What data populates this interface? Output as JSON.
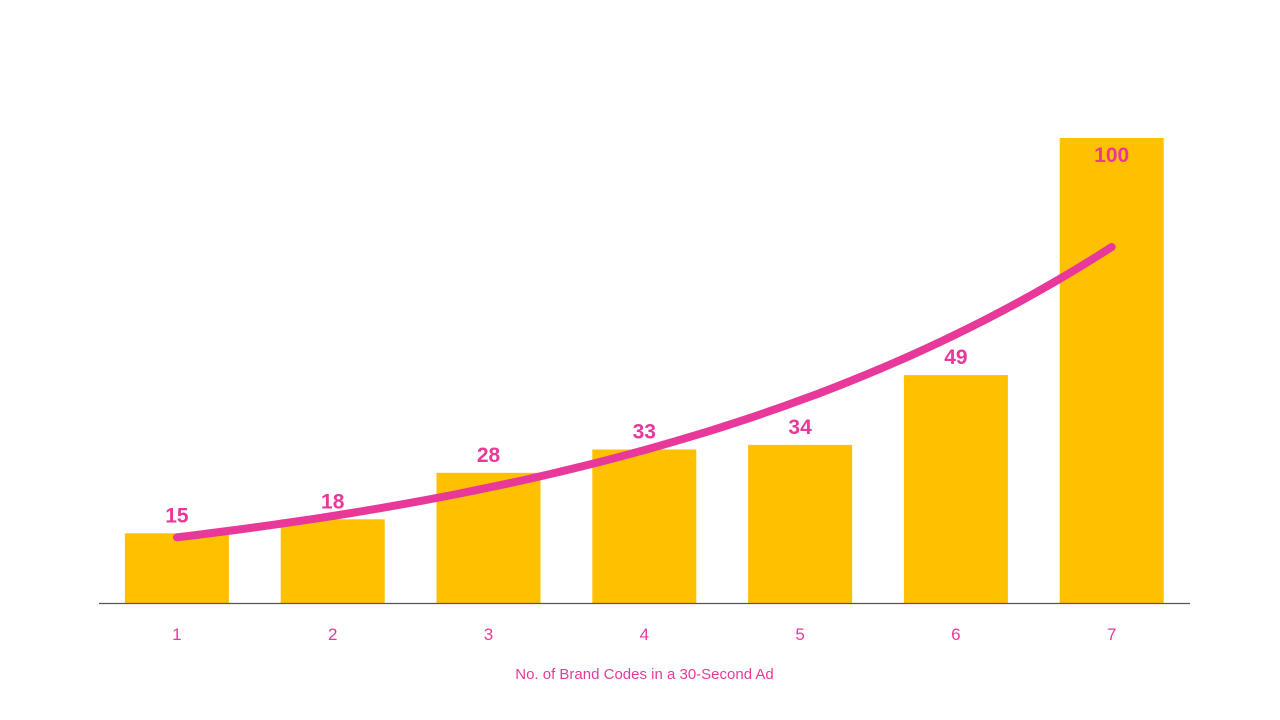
{
  "chart_data": {
    "type": "bar",
    "categories": [
      "1",
      "2",
      "3",
      "4",
      "5",
      "6",
      "7"
    ],
    "values": [
      15,
      18,
      28,
      33,
      34,
      49,
      100
    ],
    "data_labels": [
      "15",
      "18",
      "28",
      "33",
      "34",
      "49",
      "100"
    ],
    "xlabel": "No. of Brand Codes in a 30-Second Ad",
    "ylabel": "",
    "ylim": [
      0,
      100
    ],
    "grid": false,
    "y_axis_visible": false,
    "trendline": {
      "type": "exponential",
      "visible": true
    }
  },
  "colors": {
    "bar": "#FFC000",
    "text": "#E8399A",
    "trendline": "#E8399A",
    "axis": "#555555",
    "background": "#FFFFFF"
  }
}
